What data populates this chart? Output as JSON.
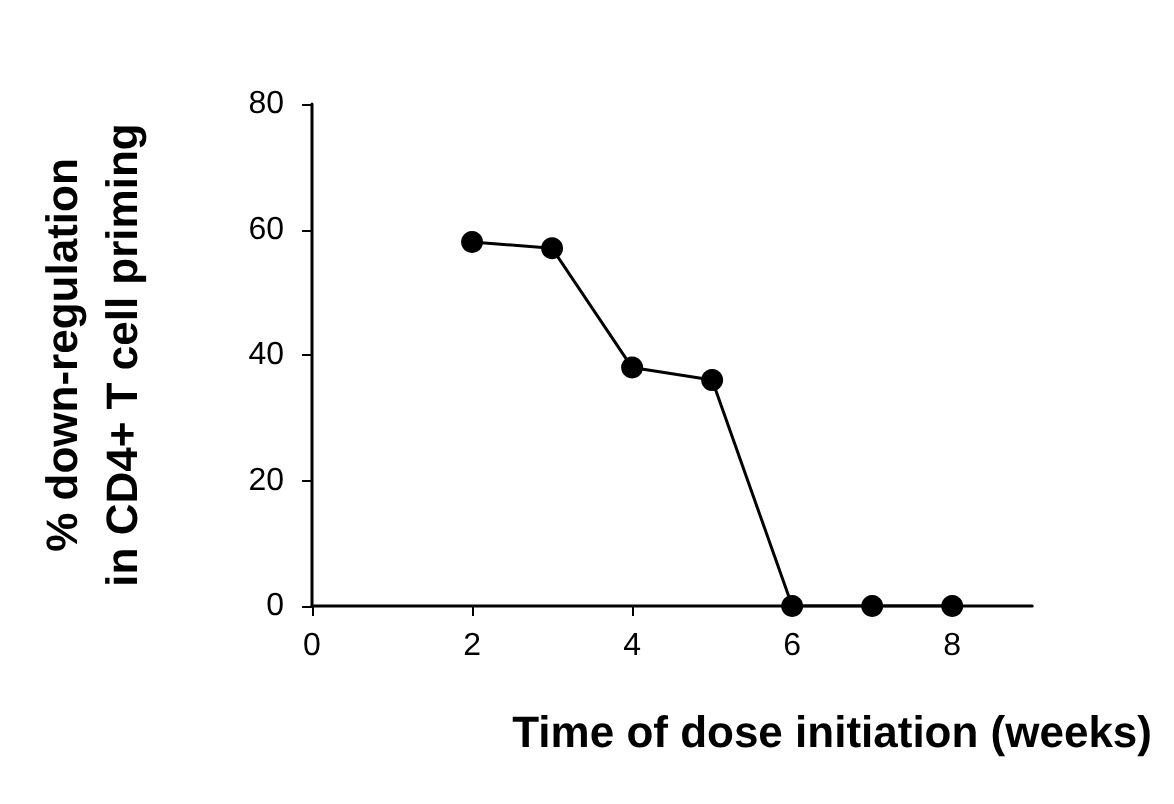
{
  "chart_data": {
    "type": "line",
    "xlabel": "Time of dose initiation (weeks)",
    "ylabel": "% down-regulation\nin CD4+ T cell priming",
    "x": [
      2,
      3,
      4,
      5,
      6,
      7,
      8
    ],
    "series": [
      {
        "color": "#000000",
        "values": [
          58,
          57,
          38,
          36,
          0,
          0,
          0
        ]
      }
    ],
    "xlim": [
      0,
      9
    ],
    "xticks": [
      0,
      2,
      4,
      6,
      8
    ],
    "ylim": [
      0,
      80
    ],
    "yticks": [
      0,
      20,
      40,
      60,
      80
    ],
    "grid": false,
    "marker": "circle",
    "line_style": "solid"
  }
}
